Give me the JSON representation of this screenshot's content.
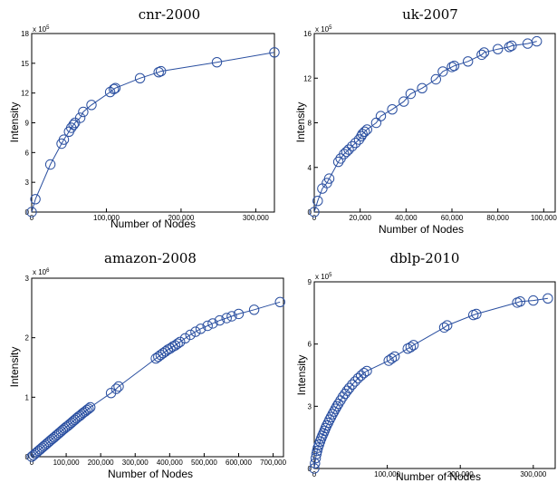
{
  "chart_data": [
    {
      "type": "line",
      "title": "cnr-2000",
      "xlabel": "Number of Nodes",
      "ylabel": "Intensity",
      "y_multiplier": "x 10",
      "y_exponent": "5",
      "xlim": [
        0,
        325000
      ],
      "ylim": [
        0,
        1800000
      ],
      "xticks": [
        0,
        100000,
        200000,
        300000
      ],
      "xtick_labels": [
        "0",
        "100,000",
        "200,000",
        "300,000"
      ],
      "yticks": [
        0,
        300000,
        600000,
        900000,
        1200000,
        1500000,
        1800000
      ],
      "ytick_labels": [
        "0",
        "3",
        "6",
        "9",
        "12",
        "15",
        "18"
      ],
      "x": [
        0,
        5000,
        25000,
        40000,
        43000,
        50000,
        53000,
        56000,
        58000,
        65000,
        69000,
        80000,
        105000,
        110000,
        112000,
        145000,
        170000,
        173000,
        248000,
        325000
      ],
      "y": [
        0,
        130000,
        480000,
        690000,
        730000,
        810000,
        850000,
        880000,
        900000,
        950000,
        1010000,
        1080000,
        1210000,
        1240000,
        1250000,
        1350000,
        1410000,
        1420000,
        1510000,
        1610000
      ]
    },
    {
      "type": "line",
      "title": "uk-2007",
      "xlabel": "Number of Nodes",
      "ylabel": "Intensity",
      "y_multiplier": "x 10",
      "y_exponent": "5",
      "xlim": [
        0,
        105000
      ],
      "ylim": [
        0,
        1600000
      ],
      "xticks": [
        0,
        20000,
        40000,
        60000,
        80000,
        100000
      ],
      "xtick_labels": [
        "0",
        "20,000",
        "40,000",
        "60,000",
        "80,000",
        "100,000"
      ],
      "yticks": [
        0,
        400000,
        800000,
        1200000,
        1600000
      ],
      "ytick_labels": [
        "0",
        "4",
        "8",
        "12",
        "16"
      ],
      "x": [
        0,
        1500,
        3500,
        5500,
        6500,
        10500,
        11500,
        13000,
        14000,
        15000,
        16500,
        18000,
        19500,
        20500,
        21000,
        22000,
        23000,
        27000,
        29000,
        34000,
        39000,
        42000,
        47000,
        53000,
        56000,
        60000,
        61000,
        67000,
        73000,
        74000,
        80000,
        85000,
        86000,
        93000,
        97000
      ],
      "y": [
        0,
        100000,
        210000,
        260000,
        300000,
        450000,
        480000,
        520000,
        540000,
        560000,
        590000,
        620000,
        650000,
        680000,
        700000,
        720000,
        740000,
        800000,
        860000,
        920000,
        990000,
        1060000,
        1110000,
        1190000,
        1260000,
        1300000,
        1310000,
        1350000,
        1410000,
        1430000,
        1460000,
        1480000,
        1490000,
        1510000,
        1530000
      ]
    },
    {
      "type": "line",
      "title": "amazon-2008",
      "xlabel": "Number of Nodes",
      "ylabel": "Intensity",
      "y_multiplier": "x 10",
      "y_exponent": "6",
      "xlim": [
        0,
        730000
      ],
      "ylim": [
        0,
        3000000
      ],
      "xticks": [
        0,
        100000,
        200000,
        300000,
        400000,
        500000,
        600000,
        700000
      ],
      "xtick_labels": [
        "0",
        "100,000",
        "200,000",
        "300,000",
        "400,000",
        "500,000",
        "600,000",
        "700,000"
      ],
      "yticks": [
        0,
        1000000,
        2000000,
        3000000
      ],
      "ytick_labels": [
        "0",
        "1",
        "2",
        "3"
      ],
      "x": [
        0,
        5000,
        10000,
        15000,
        20000,
        25000,
        30000,
        35000,
        40000,
        45000,
        50000,
        55000,
        60000,
        65000,
        70000,
        75000,
        80000,
        85000,
        90000,
        95000,
        100000,
        105000,
        110000,
        115000,
        120000,
        125000,
        130000,
        135000,
        140000,
        145000,
        150000,
        155000,
        160000,
        165000,
        170000,
        230000,
        245000,
        252000,
        360000,
        367000,
        374000,
        381000,
        388000,
        395000,
        402000,
        409000,
        416000,
        423000,
        430000,
        445000,
        460000,
        475000,
        490000,
        510000,
        525000,
        545000,
        565000,
        580000,
        600000,
        645000,
        720000
      ],
      "y": [
        0,
        25000,
        50000,
        75000,
        100000,
        125000,
        150000,
        175000,
        200000,
        225000,
        250000,
        275000,
        300000,
        325000,
        350000,
        375000,
        400000,
        425000,
        450000,
        475000,
        500000,
        520000,
        545000,
        570000,
        595000,
        620000,
        645000,
        670000,
        690000,
        715000,
        740000,
        760000,
        785000,
        805000,
        830000,
        1070000,
        1140000,
        1180000,
        1650000,
        1680000,
        1710000,
        1740000,
        1770000,
        1800000,
        1820000,
        1850000,
        1870000,
        1900000,
        1930000,
        1990000,
        2050000,
        2100000,
        2150000,
        2200000,
        2240000,
        2290000,
        2330000,
        2360000,
        2400000,
        2470000,
        2600000
      ]
    },
    {
      "type": "line",
      "title": "dblp-2010",
      "xlabel": "Number of Nodes",
      "ylabel": "Intensity",
      "y_multiplier": "x 10",
      "y_exponent": "5",
      "xlim": [
        0,
        330000
      ],
      "ylim": [
        0,
        900000
      ],
      "xticks": [
        0,
        100000,
        200000,
        300000
      ],
      "xtick_labels": [
        "0",
        "100,000",
        "200,000",
        "300,000"
      ],
      "yticks": [
        0,
        300000,
        600000,
        900000
      ],
      "ytick_labels": [
        "0",
        "3",
        "6",
        "9"
      ],
      "x": [
        0,
        1000,
        2000,
        3000,
        4000,
        5000,
        6500,
        8000,
        9500,
        11000,
        12500,
        14000,
        15500,
        17000,
        19000,
        21000,
        23000,
        25000,
        27000,
        29000,
        31000,
        33000,
        36000,
        39000,
        42000,
        45000,
        48000,
        52000,
        56000,
        60000,
        64000,
        68000,
        72000,
        102000,
        106000,
        110000,
        128000,
        132000,
        136000,
        178000,
        182000,
        218000,
        222000,
        278000,
        282000,
        300000,
        320000
      ],
      "y": [
        0,
        25000,
        50000,
        70000,
        85000,
        100000,
        115000,
        130000,
        145000,
        158000,
        170000,
        182000,
        195000,
        207000,
        220000,
        235000,
        248000,
        262000,
        275000,
        288000,
        300000,
        312000,
        328000,
        345000,
        360000,
        375000,
        388000,
        405000,
        420000,
        435000,
        448000,
        460000,
        470000,
        520000,
        530000,
        540000,
        578000,
        585000,
        595000,
        680000,
        690000,
        740000,
        745000,
        800000,
        805000,
        810000,
        820000
      ]
    }
  ]
}
